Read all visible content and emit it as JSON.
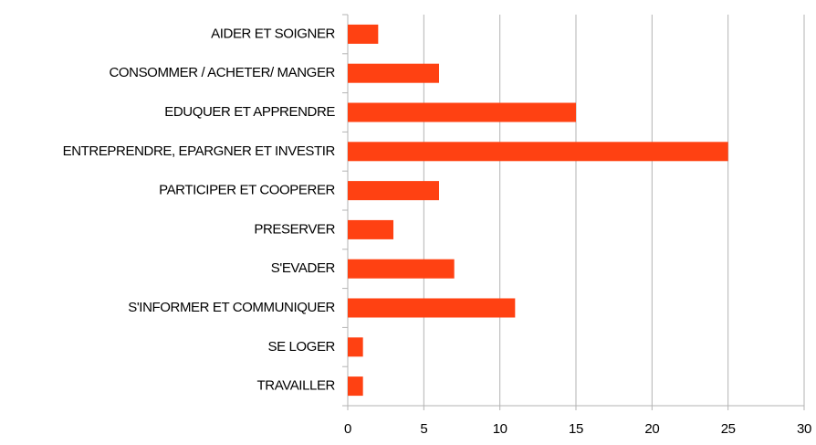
{
  "chart_data": {
    "type": "bar",
    "orientation": "horizontal",
    "categories": [
      "AIDER ET SOIGNER",
      "CONSOMMER / ACHETER/ MANGER",
      "EDUQUER ET APPRENDRE",
      "ENTREPRENDRE, EPARGNER ET INVESTIR",
      "PARTICIPER ET COOPERER",
      "PRESERVER",
      "S'EVADER",
      "S'INFORMER ET COMMUNIQUER",
      "SE LOGER",
      "TRAVAILLER"
    ],
    "values": [
      2,
      6,
      15,
      25,
      6,
      3,
      7,
      11,
      1,
      1
    ],
    "color": "#ff4112",
    "xlim": [
      0,
      30
    ],
    "xticks": [
      0,
      5,
      10,
      15,
      20,
      25,
      30
    ],
    "grid": true
  }
}
